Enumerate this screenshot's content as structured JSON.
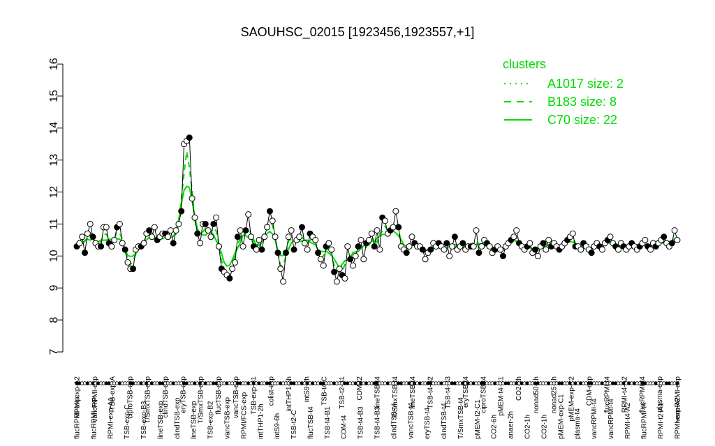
{
  "chart_data": {
    "type": "line",
    "title": "SAOUHSC_02015 [1923456,1923557,+1]",
    "xlabel": "",
    "ylabel": "",
    "ylim": [
      7,
      16
    ],
    "yticks": [
      7,
      8,
      9,
      10,
      11,
      12,
      13,
      14,
      15,
      16
    ],
    "grid": false,
    "legend": {
      "title": "clusters",
      "position": "top-right",
      "color": "#00dd00",
      "entries": [
        {
          "label": "A1017 size: 2",
          "style": "dotted"
        },
        {
          "label": "B183 size: 8",
          "style": "dashed"
        },
        {
          "label": "C70 size: 22",
          "style": "solid"
        }
      ]
    },
    "x_labels_top": [
      "RPMI-exp-A2",
      "vancRPMI-exp",
      "TSB-exp-A",
      "ciproTSB-exp",
      "T/SmxTSB-exp",
      "clindTSB-exp",
      "eryTSB-exp",
      "T/SmxTSB-exp",
      "flucTSB-exp",
      "vancTSB-exp",
      "TSB-exp-B1",
      "colist-exp",
      "intTHP1-6h",
      "intS9-2h",
      "TSB-t4-C",
      "TSB-t2-B1",
      "CDM-t2",
      "lineTSB-t4",
      "T/SmxTSB-t4",
      "lineTSB-t4",
      "TSB-t4-B2",
      "TSB-t4-B3",
      "eryTSB-t4",
      "ciproTSB-t4",
      "pMEM-t4-C1",
      "CO2-2h",
      "nonad50-1h",
      "nonad25-1h",
      "pMEM-exp-C2",
      "CDM-exp",
      "flucRPMI-t4",
      "RPMI-t4-A2",
      "flucRPMI-t4",
      "plasma-exp",
      "vancRPMI-exp"
    ],
    "x_labels_bottom": [
      "flucRPMI-exp",
      "flucRPMI-exp",
      "RPMI-exp-A1",
      "TSB-exp-C",
      "TSB-exp-B3",
      "lineTSB-exp",
      "clindTSB-exp",
      "lineTSB-exp",
      "TSB-exp-B2",
      "vancTSB-exp",
      "RPMI/FCS-exp",
      "intTHP1-2h",
      "intS9-6h",
      "TSB-t2-C",
      "flucTSB-t4",
      "TSB-t4-B1",
      "CDM-t4",
      "TSB-t4-B3",
      "TSB-t4-B3",
      "clindTSB-t4",
      "vancTSB-t4",
      "eryTSB-t4",
      "clindTSB-t4",
      "T/SmxTSB-t4",
      "pMEM-t2-C1",
      "CO2-6h",
      "anaer-2h",
      "CO2-1h",
      "CO2-1h",
      "pMEM-exp-C1",
      "plasma-t4",
      "vancRPMI-t4",
      "vancRPMI-t4",
      "RPMI-t4-A2",
      "flucRPMI-t4",
      "RPMI-t2-A1",
      "RPMI-exp-A2"
    ],
    "x": [
      1,
      2,
      3,
      4,
      5,
      6,
      7,
      8,
      9,
      10,
      11,
      12,
      13,
      14,
      15,
      16,
      17,
      18,
      19,
      20,
      21,
      22,
      23,
      24,
      25,
      26,
      27,
      28,
      29,
      30,
      31,
      32,
      33,
      34,
      35,
      36,
      37,
      38,
      39,
      40,
      41,
      42,
      43,
      44,
      45,
      46,
      47,
      48,
      49,
      50,
      51,
      52,
      53,
      54,
      55,
      56,
      57,
      58,
      59,
      60,
      61,
      62,
      63,
      64,
      65,
      66,
      67,
      68,
      69,
      70,
      71,
      72,
      73,
      74,
      75,
      76,
      77,
      78,
      79,
      80,
      81,
      82,
      83,
      84,
      85,
      86,
      87,
      88,
      89,
      90,
      91,
      92,
      93,
      94,
      95,
      96,
      97,
      98,
      99,
      100,
      101,
      102,
      103,
      104,
      105,
      106,
      107,
      108,
      109,
      110,
      111,
      112,
      113,
      114,
      115,
      116,
      117,
      118,
      119,
      120,
      121,
      122,
      123,
      124,
      125,
      126,
      127,
      128,
      129,
      130,
      131,
      132,
      133,
      134,
      135,
      136,
      137,
      138,
      139,
      140,
      141,
      142,
      143,
      144,
      145,
      146,
      147,
      148,
      149,
      150,
      151,
      152,
      153,
      154,
      155,
      156,
      157,
      158,
      159,
      160,
      161,
      162,
      163,
      164,
      165,
      166,
      167,
      168,
      169,
      170,
      171,
      172,
      173,
      174,
      175,
      176,
      177,
      178,
      179,
      180,
      181,
      182,
      183,
      184,
      185,
      186,
      187,
      188,
      189,
      190,
      191,
      192,
      193,
      194,
      195,
      196,
      197,
      198,
      199,
      200,
      201,
      202,
      203,
      204,
      205,
      206,
      207,
      208,
      209,
      210,
      211,
      212,
      213,
      214,
      215,
      216,
      217,
      218,
      219,
      220,
      221,
      222,
      223,
      224,
      225
    ],
    "series": [
      {
        "style": "points",
        "values": [
          10.3,
          10.4,
          10.6,
          10.1,
          10.7,
          11.0,
          10.6,
          10.4,
          10.3,
          10.3,
          10.9,
          10.9,
          10.4,
          10.3,
          10.5,
          10.9,
          11.0,
          10.4,
          10.2,
          9.8,
          9.6,
          9.6,
          10.2,
          10.3,
          10.3,
          10.4,
          10.7,
          10.8,
          10.6,
          10.9,
          10.5,
          10.6,
          10.7,
          10.7,
          10.6,
          10.8,
          10.4,
          10.8,
          11.0,
          11.4,
          13.5,
          13.6,
          13.7,
          11.8,
          11.2,
          10.7,
          10.4,
          11.0,
          11.0,
          10.8,
          10.6,
          11.0,
          11.2,
          10.3,
          9.6,
          9.5,
          9.4,
          9.3,
          9.6,
          9.8,
          10.6,
          10.8,
          10.3,
          10.8,
          11.3,
          10.6,
          10.3,
          10.2,
          10.5,
          10.2,
          10.6,
          10.9,
          11.4,
          11.1,
          10.6,
          10.1,
          9.6,
          9.2,
          10.1,
          10.6,
          10.8,
          10.2,
          10.5,
          10.6,
          10.9,
          10.4,
          10.2,
          10.7,
          10.6,
          10.5,
          10.1,
          9.9,
          9.7,
          10.3,
          10.4,
          10.2,
          9.5,
          9.2,
          9.6,
          9.4,
          9.3,
          10.3,
          9.9,
          9.7,
          10.0,
          10.3,
          10.5,
          9.9,
          10.4,
          10.5,
          10.7,
          10.3,
          10.8,
          10.2,
          11.2,
          11.1,
          10.7,
          10.8,
          10.9,
          11.4,
          10.9,
          10.3,
          10.2,
          10.1,
          10.3,
          10.6,
          10.4,
          10.3,
          10.3,
          10.2,
          9.9,
          10.1,
          10.2,
          10.4,
          10.3,
          10.4,
          10.3,
          10.2,
          10.4,
          10.0,
          10.3,
          10.6,
          10.2,
          10.3,
          10.4,
          10.2,
          10.3,
          10.3,
          10.3,
          10.8,
          10.1,
          10.3,
          10.5,
          10.4,
          10.3,
          10.1,
          10.2,
          10.3,
          10.2,
          10.0,
          10.3,
          10.4,
          10.5,
          10.6,
          10.8,
          10.4,
          10.3,
          10.2,
          10.3,
          10.4,
          10.1,
          10.2,
          10.0,
          10.3,
          10.4,
          10.2,
          10.5,
          10.3,
          10.4,
          10.3,
          10.2,
          10.3,
          10.4,
          10.5,
          10.6,
          10.7,
          10.3,
          10.3,
          10.2,
          10.4,
          10.3,
          10.2,
          10.1,
          10.3,
          10.4,
          10.3,
          10.2,
          10.4,
          10.5,
          10.6,
          10.4,
          10.3,
          10.2,
          10.4,
          10.3,
          10.2,
          10.3,
          10.4,
          10.3,
          10.2,
          10.3,
          10.4,
          10.5,
          10.3,
          10.2,
          10.4,
          10.3,
          10.4,
          10.5,
          10.6,
          10.4,
          10.3,
          10.4,
          10.8,
          10.5
        ]
      }
    ]
  }
}
